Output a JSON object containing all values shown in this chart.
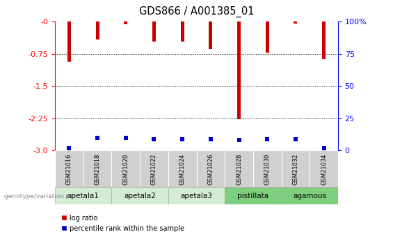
{
  "title": "GDS866 / A001385_01",
  "samples": [
    "GSM21016",
    "GSM21018",
    "GSM21020",
    "GSM21022",
    "GSM21024",
    "GSM21026",
    "GSM21028",
    "GSM21030",
    "GSM21032",
    "GSM21034"
  ],
  "log_ratios": [
    -0.93,
    -0.42,
    -0.07,
    -0.47,
    -0.46,
    -0.65,
    -2.27,
    -0.73,
    -0.05,
    -0.87
  ],
  "percentile_ranks": [
    2,
    10,
    10,
    9,
    9,
    9,
    8,
    9,
    9,
    2
  ],
  "groups": [
    {
      "name": "apetala1",
      "indices": [
        0,
        1
      ],
      "color": "#d4ecd4"
    },
    {
      "name": "apetala2",
      "indices": [
        2,
        3
      ],
      "color": "#d4ecd4"
    },
    {
      "name": "apetala3",
      "indices": [
        4,
        5
      ],
      "color": "#d4ecd4"
    },
    {
      "name": "pistillata",
      "indices": [
        6,
        7
      ],
      "color": "#7dce7d"
    },
    {
      "name": "agamous",
      "indices": [
        8,
        9
      ],
      "color": "#7dce7d"
    }
  ],
  "ylim_left": [
    -3,
    0
  ],
  "ylim_right": [
    0,
    100
  ],
  "yticks_left": [
    0,
    -0.75,
    -1.5,
    -2.25,
    -3
  ],
  "yticks_right": [
    0,
    25,
    50,
    75,
    100
  ],
  "bar_color": "#cc0000",
  "marker_color": "#0000cc",
  "legend_items": [
    "log ratio",
    "percentile rank within the sample"
  ],
  "genotype_label": "genotype/variation"
}
